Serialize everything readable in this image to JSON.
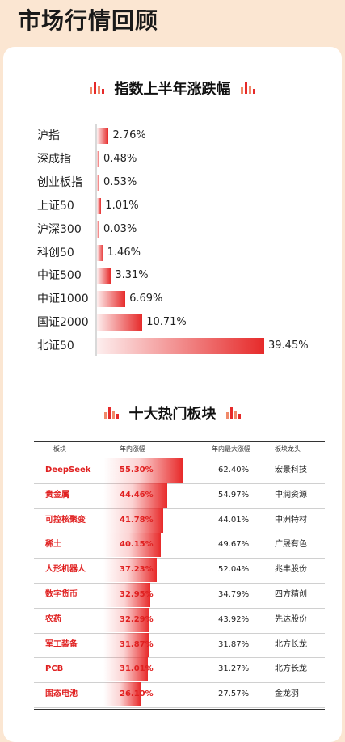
{
  "page": {
    "title": "市场行情回顾"
  },
  "accent": "#e62a2a",
  "section1": {
    "title": "指数上半年涨跌幅"
  },
  "section2": {
    "title": "十大热门板块"
  },
  "chart_data": [
    {
      "type": "bar",
      "orientation": "horizontal",
      "title": "指数上半年涨跌幅",
      "categories": [
        "沪指",
        "深成指",
        "创业板指",
        "上证50",
        "沪深300",
        "科创50",
        "中证500",
        "中证1000",
        "国证2000",
        "北证50"
      ],
      "values": [
        2.76,
        0.48,
        0.53,
        1.01,
        0.03,
        1.46,
        3.31,
        6.69,
        10.71,
        39.45
      ],
      "labels": [
        "2.76%",
        "0.48%",
        "0.53%",
        "1.01%",
        "0.03%",
        "1.46%",
        "3.31%",
        "6.69%",
        "10.71%",
        "39.45%"
      ],
      "unit": "%"
    },
    {
      "type": "table",
      "title": "十大热门板块",
      "columns": [
        "板块",
        "年内涨幅",
        "年内最大涨幅",
        "板块龙头"
      ],
      "rows": [
        {
          "name": "DeepSeek",
          "gain": 55.3,
          "gain_label": "55.30%",
          "max_label": "62.40%",
          "leader": "宏景科技"
        },
        {
          "name": "贵金属",
          "gain": 44.46,
          "gain_label": "44.46%",
          "max_label": "54.97%",
          "leader": "中润资源"
        },
        {
          "name": "可控核聚变",
          "gain": 41.78,
          "gain_label": "41.78%",
          "max_label": "44.01%",
          "leader": "中洲特材"
        },
        {
          "name": "稀土",
          "gain": 40.15,
          "gain_label": "40.15%",
          "max_label": "49.67%",
          "leader": "广晟有色"
        },
        {
          "name": "人形机器人",
          "gain": 37.23,
          "gain_label": "37.23%",
          "max_label": "52.04%",
          "leader": "兆丰股份"
        },
        {
          "name": "数字货币",
          "gain": 32.95,
          "gain_label": "32.95%",
          "max_label": "34.79%",
          "leader": "四方精创"
        },
        {
          "name": "农药",
          "gain": 32.29,
          "gain_label": "32.29%",
          "max_label": "43.92%",
          "leader": "先达股份"
        },
        {
          "name": "军工装备",
          "gain": 31.87,
          "gain_label": "31.87%",
          "max_label": "31.87%",
          "leader": "北方长龙"
        },
        {
          "name": "PCB",
          "gain": 31.01,
          "gain_label": "31.01%",
          "max_label": "31.27%",
          "leader": "北方长龙"
        },
        {
          "name": "固态电池",
          "gain": 26.1,
          "gain_label": "26.10%",
          "max_label": "27.57%",
          "leader": "金龙羽"
        }
      ]
    }
  ]
}
